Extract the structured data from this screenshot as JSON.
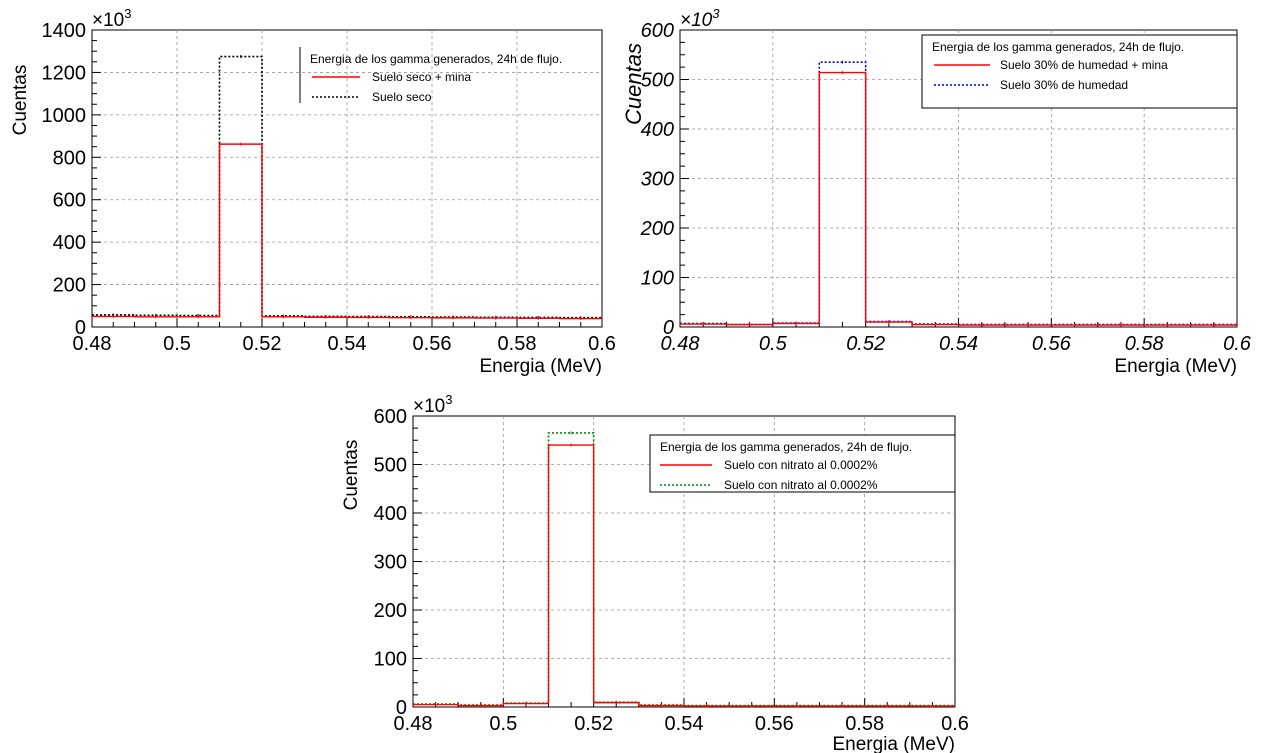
{
  "chart_data": [
    {
      "type": "histogram",
      "ylabel": "Cuentas",
      "ylabel_style": "normal",
      "xlabel": "Energia (MeV)",
      "multiplier": "×10",
      "multiplier_exp": "3",
      "xlim": [
        0.48,
        0.6
      ],
      "ylim": [
        0,
        1400
      ],
      "xticks": [
        "0.48",
        "0.5",
        "0.52",
        "0.54",
        "0.56",
        "0.58",
        "0.6"
      ],
      "yticks": [
        "0",
        "200",
        "400",
        "600",
        "800",
        "1000",
        "1200",
        "1400"
      ],
      "grid": true,
      "legend": {
        "title": "Energia de los gamma generados, 24h de flujo.",
        "placement": "top-right",
        "entries": [
          "Suelo seco + mina",
          "Suelo seco"
        ]
      },
      "bin_edges": [
        0.48,
        0.49,
        0.5,
        0.51,
        0.52,
        0.53,
        0.54,
        0.55,
        0.56,
        0.57,
        0.58,
        0.59,
        0.6
      ],
      "series": [
        {
          "name": "Suelo seco + mina",
          "color": "#ff0000",
          "style": "solid",
          "values": [
            50,
            48,
            48,
            862,
            48,
            46,
            45,
            44,
            43,
            42,
            41,
            40
          ]
        },
        {
          "name": "Suelo seco",
          "color": "#000000",
          "style": "dotted",
          "values": [
            57,
            55,
            54,
            1275,
            52,
            50,
            49,
            48,
            47,
            46,
            45,
            44
          ]
        }
      ]
    },
    {
      "type": "histogram",
      "ylabel": "Cuentas",
      "ylabel_style": "italic",
      "xlabel": "Energia (MeV)",
      "multiplier": "×10",
      "multiplier_exp": "3",
      "xlim": [
        0.48,
        0.6
      ],
      "ylim": [
        0,
        600
      ],
      "xticks": [
        "0.48",
        "0.5",
        "0.52",
        "0.54",
        "0.56",
        "0.58",
        "0.6"
      ],
      "yticks": [
        "0",
        "100",
        "200",
        "300",
        "400",
        "500",
        "600"
      ],
      "grid": true,
      "legend": {
        "title": "Energia de los gamma generados, 24h de flujo.",
        "placement": "top-right",
        "entries": [
          "Suelo 30% de humedad + mina",
          "Suelo 30% de humedad"
        ]
      },
      "bin_edges": [
        0.48,
        0.49,
        0.5,
        0.51,
        0.52,
        0.53,
        0.54,
        0.55,
        0.56,
        0.57,
        0.58,
        0.59,
        0.6
      ],
      "series": [
        {
          "name": "Suelo 30% de humedad + mina",
          "color": "#ff0000",
          "style": "solid",
          "values": [
            6,
            5,
            7,
            514,
            10,
            5,
            4,
            4,
            4,
            4,
            4,
            4
          ]
        },
        {
          "name": "Suelo 30% de humedad",
          "color": "#0000cc",
          "style": "dotted",
          "values": [
            7,
            5,
            8,
            535,
            11,
            6,
            5,
            5,
            5,
            5,
            5,
            5
          ]
        }
      ]
    },
    {
      "type": "histogram",
      "ylabel": "Cuentas",
      "ylabel_style": "normal",
      "xlabel": "Energia (MeV)",
      "multiplier": "×10",
      "multiplier_exp": "3",
      "xlim": [
        0.48,
        0.6
      ],
      "ylim": [
        0,
        600
      ],
      "xticks": [
        "0.48",
        "0.5",
        "0.52",
        "0.54",
        "0.56",
        "0.58",
        "0.6"
      ],
      "yticks": [
        "0",
        "100",
        "200",
        "300",
        "400",
        "500",
        "600"
      ],
      "grid": true,
      "legend": {
        "title": "Energia de los gamma generados, 24h de flujo.",
        "placement": "top-right",
        "entries": [
          "Suelo con nitrato al 0.0002%",
          "Suelo con nitrato al 0.0002%"
        ]
      },
      "bin_edges": [
        0.48,
        0.49,
        0.5,
        0.51,
        0.52,
        0.53,
        0.54,
        0.55,
        0.56,
        0.57,
        0.58,
        0.59,
        0.6
      ],
      "series": [
        {
          "name": "Suelo con nitrato al 0.0002%",
          "color": "#ff0000",
          "style": "solid",
          "values": [
            5,
            3,
            7,
            540,
            9,
            3,
            2,
            2,
            2,
            2,
            2,
            2
          ]
        },
        {
          "name": "Suelo con nitrato al 0.0002%",
          "color": "#008800",
          "style": "dotted",
          "values": [
            6,
            4,
            8,
            565,
            10,
            4,
            3,
            3,
            3,
            3,
            3,
            3
          ]
        }
      ]
    }
  ]
}
